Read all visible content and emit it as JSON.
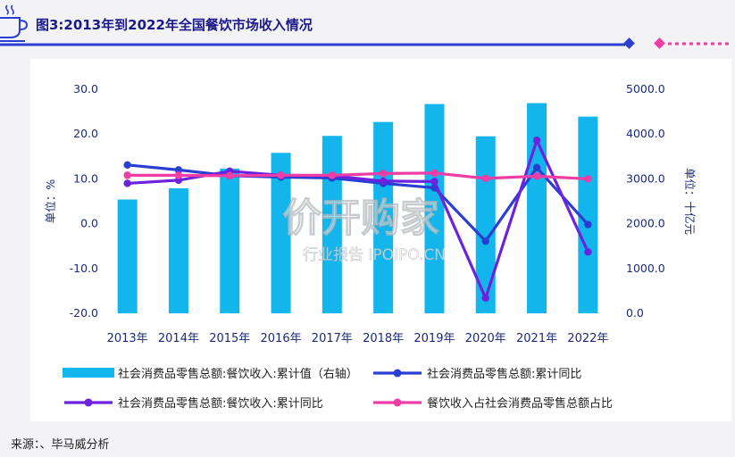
{
  "title": "图3:2013年到2022年全国餐饮市场收入情况",
  "source": "来源：、毕马威分析",
  "watermark": {
    "main": "价开购家",
    "sub": "行业报告 IPOIPO.CN"
  },
  "colors": {
    "bar": "#12b5ec",
    "retail_yoy": "#2a3fd2",
    "catering_yoy": "#6d22e0",
    "share": "#ee3da4",
    "axis_text": "#1a2a7c",
    "header_blue": "#2a3fd2",
    "header_pink": "#ee3da4"
  },
  "chart_data": {
    "type": "bar+line",
    "categories": [
      "2013年",
      "2014年",
      "2015年",
      "2016年",
      "2017年",
      "2018年",
      "2019年",
      "2020年",
      "2021年",
      "2022年"
    ],
    "y_left": {
      "label": "单位：%",
      "min": -20,
      "max": 30,
      "ticks": [
        "-20.0",
        "-10.0",
        "0.0",
        "10.0",
        "20.0",
        "30.0"
      ]
    },
    "y_right": {
      "label": "单位：十亿元",
      "min": 0,
      "max": 5000,
      "ticks": [
        "0.0",
        "1000.0",
        "2000.0",
        "3000.0",
        "4000.0",
        "5000.0"
      ]
    },
    "series": [
      {
        "name": "社会消费品零售总额:餐饮收入:累计值（右轴）",
        "type": "bar",
        "axis": "right",
        "values": [
          2540,
          2790,
          3230,
          3580,
          3960,
          4270,
          4670,
          3950,
          4690,
          4390
        ]
      },
      {
        "name": "社会消费品零售总额:累计同比",
        "type": "line",
        "axis": "left",
        "values": [
          13.1,
          12.0,
          10.7,
          10.4,
          10.2,
          9.0,
          8.0,
          -3.9,
          12.5,
          -0.2
        ]
      },
      {
        "name": "社会消费品零售总额:餐饮收入:累计同比",
        "type": "line",
        "axis": "left",
        "values": [
          9.0,
          9.7,
          11.7,
          10.8,
          10.7,
          9.5,
          9.4,
          -16.6,
          18.6,
          -6.3
        ]
      },
      {
        "name": "餐饮收入占社会消费品零售总额占比",
        "type": "line",
        "axis": "left",
        "values": [
          10.8,
          10.8,
          10.7,
          10.8,
          10.8,
          11.2,
          11.3,
          10.1,
          10.6,
          10.0
        ]
      }
    ],
    "legend_position": "bottom",
    "grid": false
  }
}
